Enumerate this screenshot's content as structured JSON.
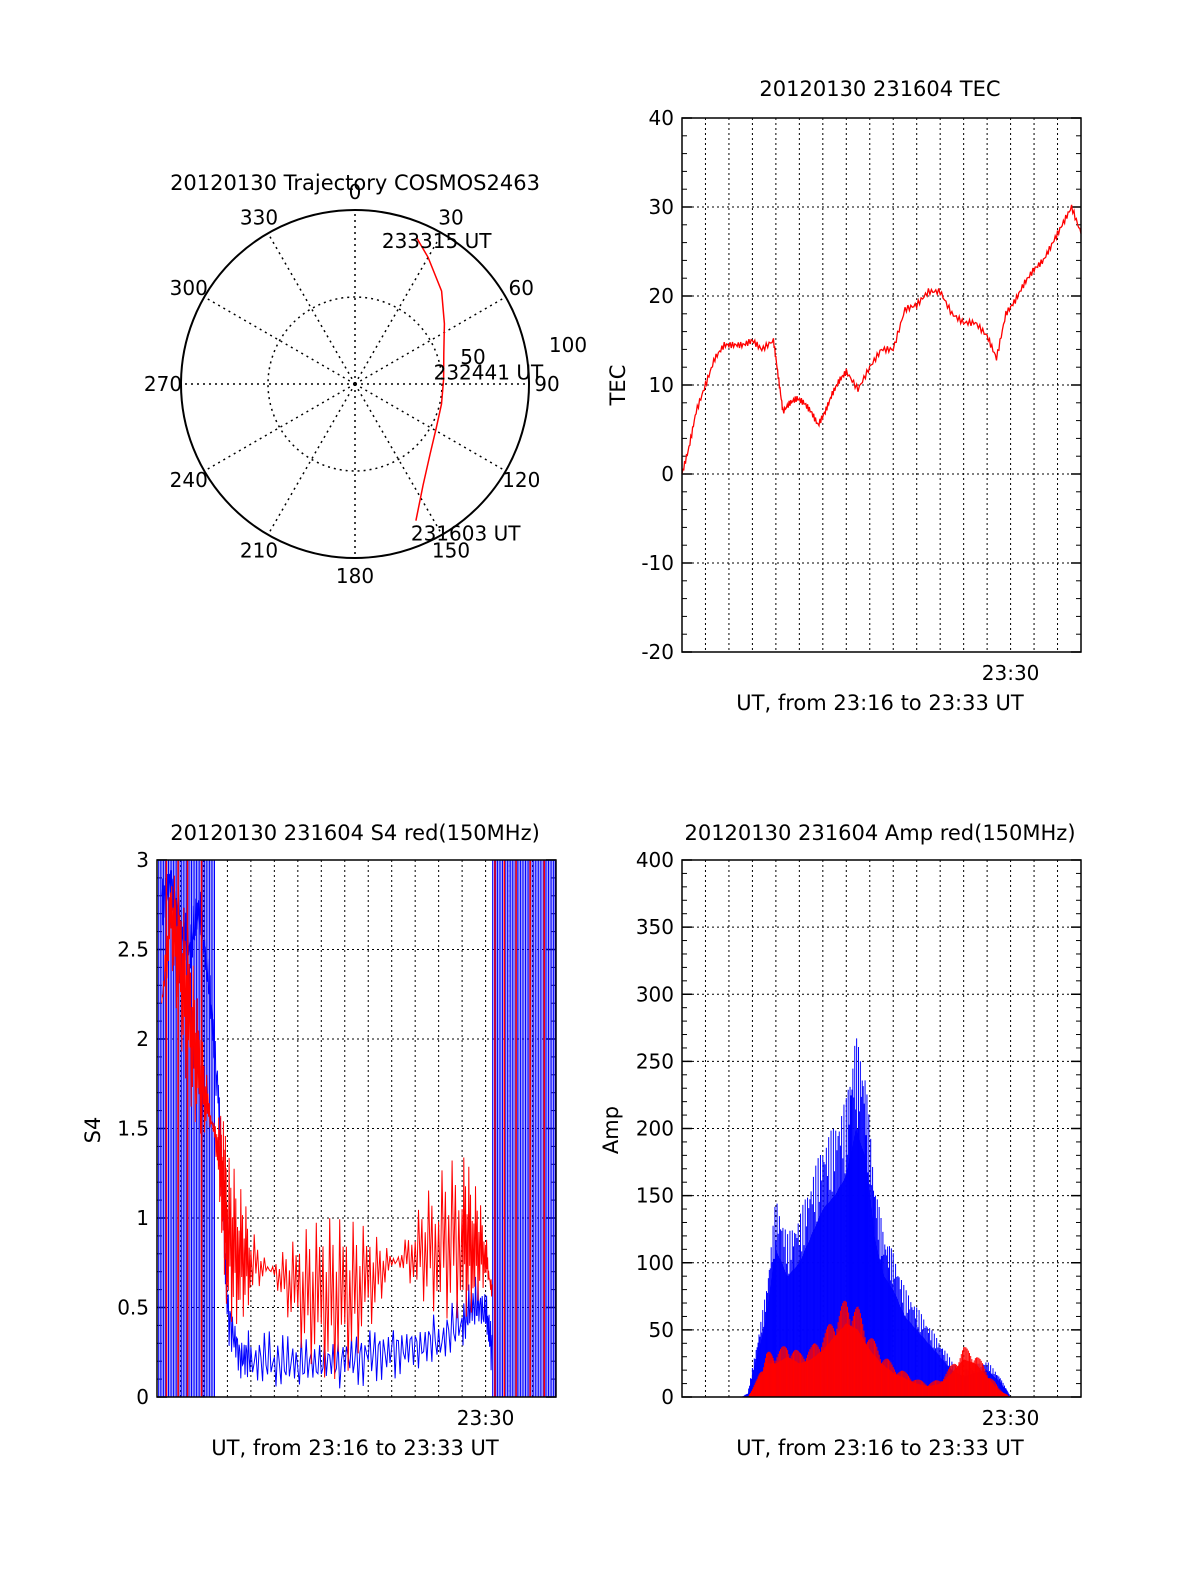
{
  "chart_data": [
    {
      "type": "polar",
      "title": "20120130 Trajectory COSMOS2463",
      "azimuth_labels": [
        "0",
        "30",
        "60",
        "90",
        "120",
        "150",
        "180",
        "210",
        "240",
        "270",
        "300",
        "330"
      ],
      "radial_labels": [
        "50",
        "100"
      ],
      "rlim": [
        0,
        100
      ],
      "grid": true,
      "trajectory": {
        "color": "#ff0000",
        "points": [
          {
            "az": 156,
            "r": 86
          },
          {
            "az": 146,
            "r": 70
          },
          {
            "az": 133,
            "r": 59
          },
          {
            "az": 118,
            "r": 53
          },
          {
            "az": 103,
            "r": 51
          },
          {
            "az": 87,
            "r": 51
          },
          {
            "az": 71,
            "r": 54
          },
          {
            "az": 56,
            "r": 62
          },
          {
            "az": 43,
            "r": 73
          },
          {
            "az": 30,
            "r": 84
          },
          {
            "az": 23,
            "r": 91
          }
        ]
      },
      "annotations": [
        {
          "text": "233315 UT",
          "az": 23,
          "r": 91
        },
        {
          "text": "232441 UT",
          "az": 87,
          "r": 51
        },
        {
          "text": "231603 UT",
          "az": 156,
          "r": 86
        }
      ]
    },
    {
      "type": "line",
      "title": "20120130 231604 TEC",
      "xlabel": "UT, from 23:16 to 23:33 UT",
      "ylabel": "TEC",
      "xlim": [
        0,
        17
      ],
      "ylim": [
        -20,
        40
      ],
      "yticks": [
        "-20",
        "-10",
        "0",
        "10",
        "20",
        "30",
        "40"
      ],
      "xtick_labels": [
        {
          "x": 14,
          "label": "23:30"
        }
      ],
      "grid": true,
      "series": [
        {
          "color": "#ff0000",
          "x": [
            0,
            0.3,
            0.6,
            1.0,
            1.4,
            1.8,
            2.2,
            2.6,
            3.0,
            3.4,
            3.9,
            4.1,
            4.3,
            4.6,
            4.9,
            5.2,
            5.5,
            5.8,
            6.1,
            6.4,
            6.7,
            7.0,
            7.5,
            8.0,
            8.5,
            9.0,
            9.5,
            10.0,
            10.5,
            11.0,
            11.5,
            12.0,
            12.5,
            13.0,
            13.4,
            13.8,
            14.2,
            14.6,
            15.0,
            15.4,
            15.8,
            16.2,
            16.6,
            17.0
          ],
          "y": [
            0,
            3,
            7,
            10,
            13,
            14.5,
            14.5,
            14.5,
            15,
            14,
            15,
            11,
            7,
            8,
            8.5,
            8,
            7,
            5.5,
            7,
            9,
            10.5,
            11.5,
            9.5,
            12,
            14,
            14,
            18.5,
            19,
            20.5,
            20.5,
            18,
            17,
            17,
            15.5,
            13,
            18,
            19.5,
            21.5,
            23,
            24,
            26,
            28,
            30,
            27
          ]
        }
      ]
    },
    {
      "type": "line",
      "title": "20120130 231604 S4 red(150MHz)",
      "xlabel": "UT, from 23:16 to 23:33 UT",
      "ylabel": "S4",
      "xlim": [
        0,
        17
      ],
      "ylim": [
        0,
        3
      ],
      "yticks": [
        "0",
        "0.5",
        "1",
        "1.5",
        "2",
        "2.5",
        "3"
      ],
      "xtick_labels": [
        {
          "x": 14,
          "label": "23:30"
        }
      ],
      "grid": true,
      "series": [
        {
          "color": "#0000ff",
          "x": [
            0.2,
            0.6,
            1.0,
            1.4,
            1.8,
            2.2,
            2.6,
            2.8,
            3.0,
            3.5,
            4.0,
            5.0,
            6.0,
            7.0,
            8.0,
            9.0,
            10.0,
            11.0,
            12.0,
            13.0,
            13.5,
            14.0,
            14.3
          ],
          "y": [
            2.8,
            2.9,
            2.6,
            2.5,
            2.7,
            2.3,
            1.7,
            1.2,
            0.5,
            0.25,
            0.22,
            0.18,
            0.16,
            0.17,
            0.2,
            0.25,
            0.28,
            0.3,
            0.32,
            0.4,
            0.5,
            0.45,
            0.25
          ]
        },
        {
          "color": "#ff0000",
          "x": [
            0.2,
            0.6,
            1.0,
            1.4,
            1.8,
            2.2,
            2.6,
            2.8,
            3.0,
            3.5,
            4.0,
            5.0,
            6.0,
            7.0,
            8.0,
            9.0,
            10.0,
            11.0,
            12.0,
            13.0,
            13.5,
            14.0,
            14.3
          ],
          "y": [
            2.2,
            2.7,
            2.4,
            2.1,
            1.8,
            1.6,
            1.4,
            1.2,
            0.9,
            0.8,
            0.75,
            0.7,
            0.6,
            0.55,
            0.55,
            0.65,
            0.75,
            0.8,
            0.85,
            0.9,
            0.85,
            0.8,
            0.55
          ]
        }
      ]
    },
    {
      "type": "area",
      "title": "20120130 231604 Amp red(150MHz)",
      "xlabel": "UT, from 23:16 to 23:33 UT",
      "ylabel": "Amp",
      "xlim": [
        0,
        17
      ],
      "ylim": [
        0,
        400
      ],
      "yticks": [
        "0",
        "50",
        "100",
        "150",
        "200",
        "250",
        "300",
        "350",
        "400"
      ],
      "xtick_labels": [
        {
          "x": 14,
          "label": "23:30"
        }
      ],
      "grid": true,
      "series": [
        {
          "color": "#0000ff",
          "x": [
            0,
            2.5,
            2.8,
            3.2,
            3.6,
            4.0,
            4.5,
            5.0,
            5.5,
            6.0,
            6.5,
            7.0,
            7.4,
            7.8,
            8.2,
            8.6,
            9.0,
            9.5,
            10.0,
            10.5,
            11.0,
            11.5,
            12.0,
            12.5,
            13.0,
            13.5,
            13.8,
            14.0,
            14.5,
            17.0
          ],
          "y": [
            0,
            0,
            2,
            30,
            60,
            110,
            90,
            100,
            120,
            140,
            150,
            165,
            200,
            180,
            120,
            90,
            80,
            60,
            50,
            40,
            30,
            20,
            15,
            18,
            20,
            12,
            5,
            0,
            0,
            0
          ]
        },
        {
          "color": "#ff0000",
          "x": [
            0,
            2.8,
            3.2,
            3.6,
            4.0,
            4.5,
            5.0,
            5.5,
            6.0,
            6.5,
            7.0,
            7.5,
            8.0,
            8.5,
            9.0,
            9.5,
            10.0,
            10.5,
            11.0,
            11.5,
            12.0,
            12.5,
            13.0,
            13.5,
            14.0,
            17.0
          ],
          "y": [
            0,
            0,
            10,
            25,
            25,
            30,
            25,
            28,
            35,
            45,
            55,
            50,
            35,
            25,
            18,
            14,
            10,
            8,
            10,
            18,
            28,
            25,
            15,
            5,
            0,
            0
          ]
        }
      ]
    }
  ]
}
